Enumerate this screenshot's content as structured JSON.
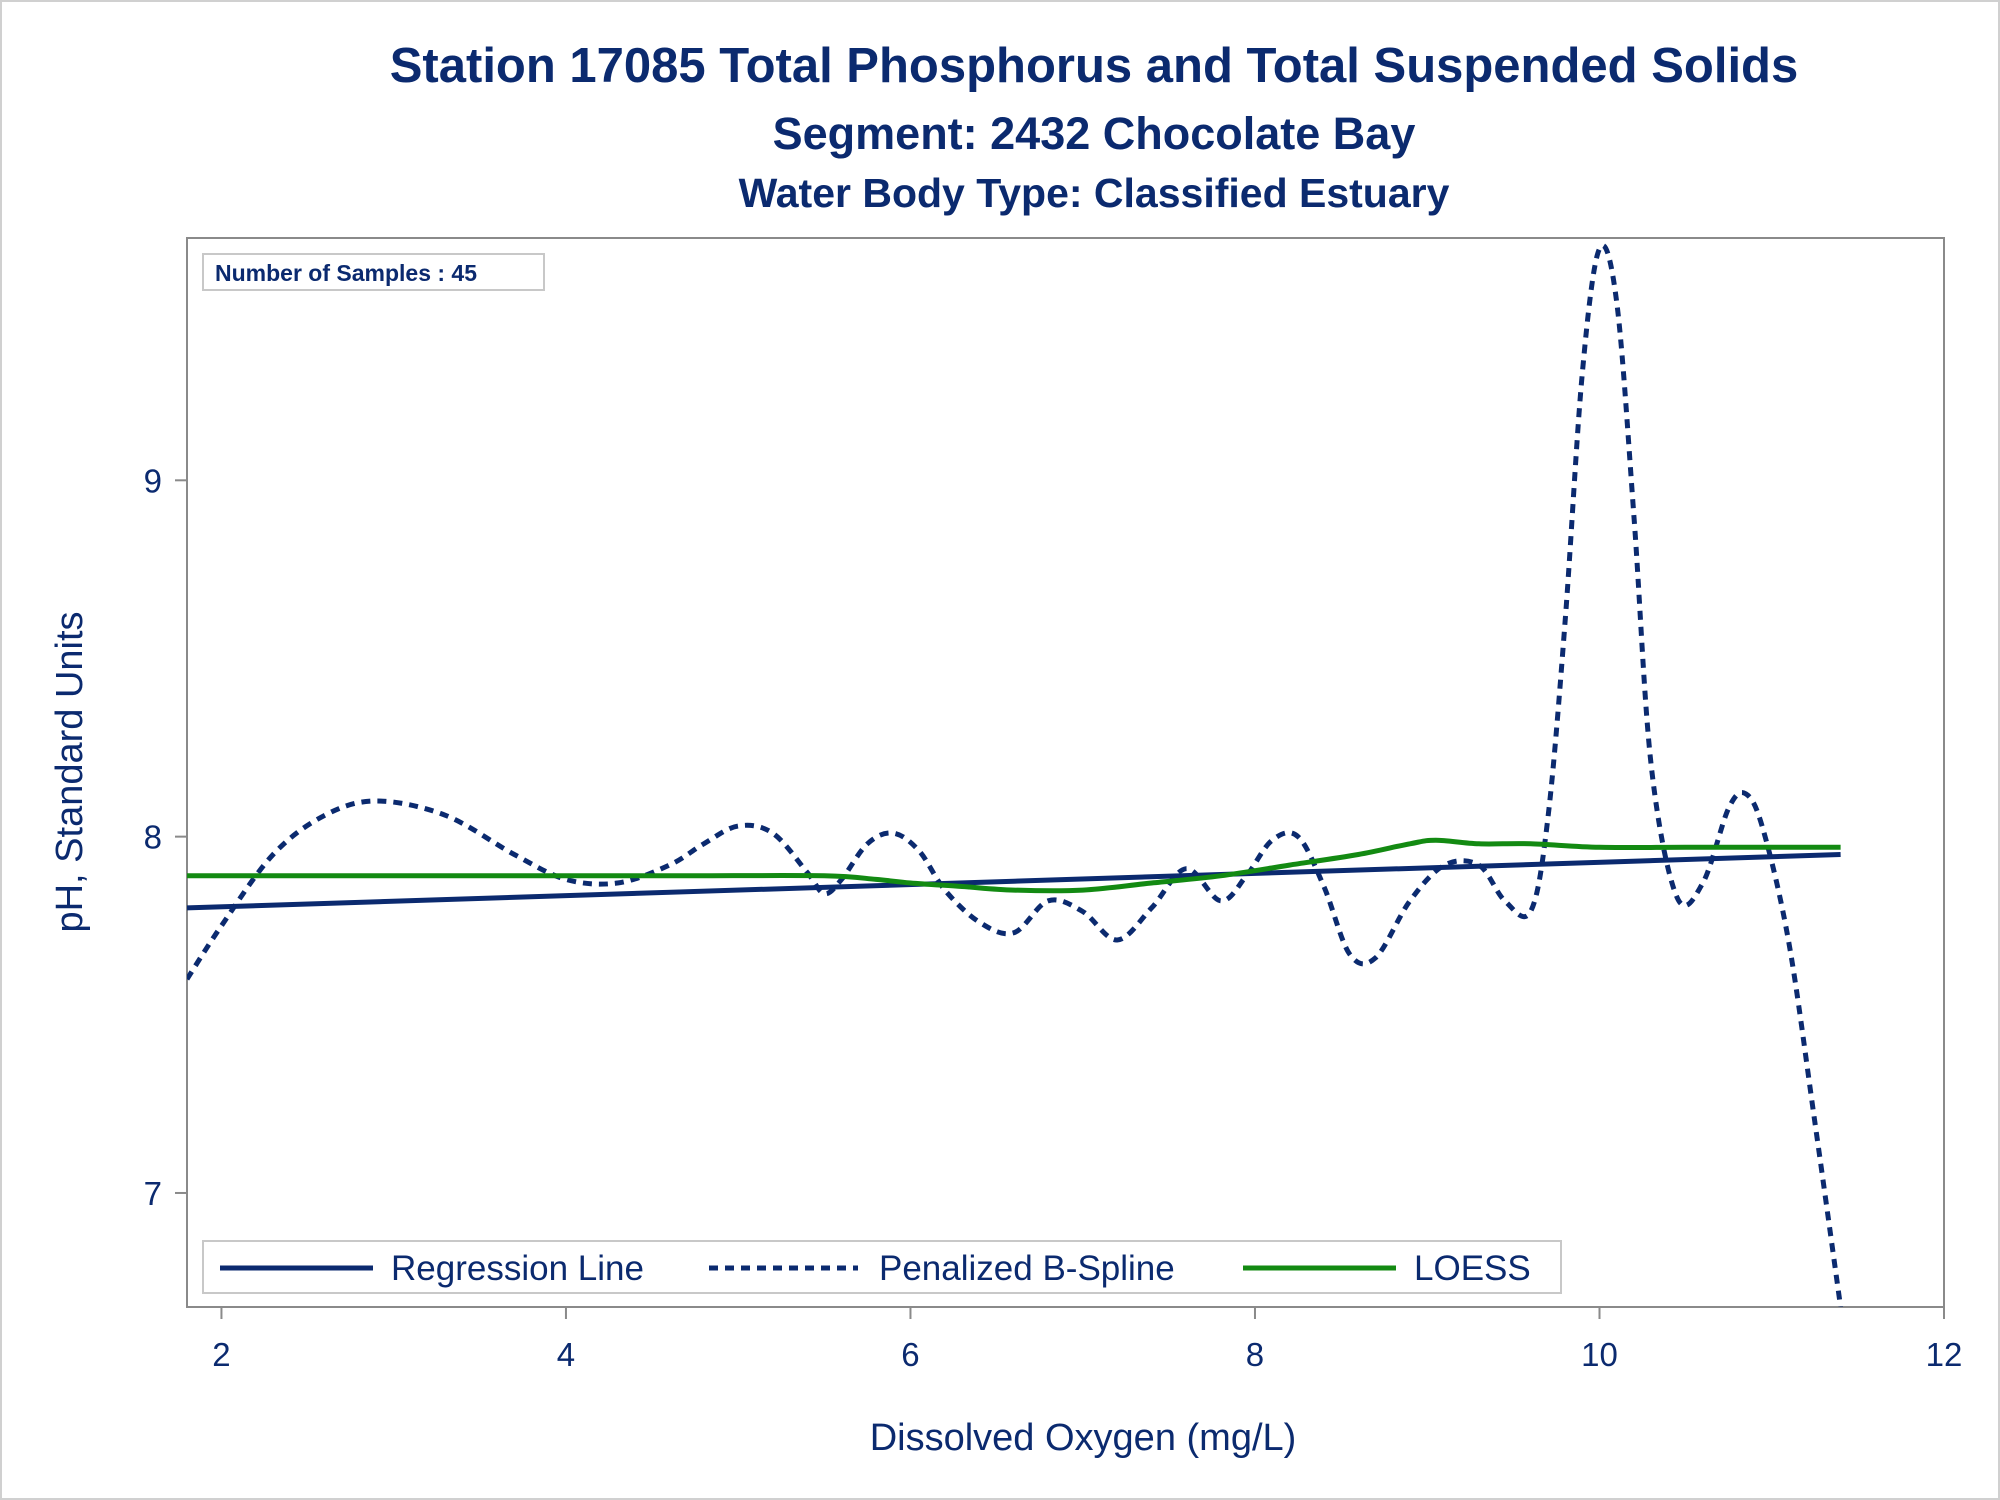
{
  "titles": {
    "line1": "Station 17085  Total Phosphorus and Total Suspended Solids",
    "line2": "Segment: 2432  Chocolate Bay",
    "line3": "Water Body Type: Classified Estuary"
  },
  "chart_data": {
    "type": "line",
    "xlabel": "Dissolved Oxygen (mg/L)",
    "ylabel": "pH, Standard Units",
    "xlim": [
      1.8,
      12.0
    ],
    "ylim": [
      6.68,
      9.68
    ],
    "x_ticks": [
      2,
      4,
      6,
      8,
      10,
      12
    ],
    "y_ticks": [
      7,
      8,
      9
    ],
    "grid": false,
    "annotation": "Number of Samples : 45",
    "legend_position": "bottom-left inside",
    "series": [
      {
        "name": "Regression Line",
        "style": "solid",
        "color": "#0b2a6f",
        "x": [
          1.8,
          11.4
        ],
        "y": [
          7.8,
          7.95
        ]
      },
      {
        "name": "Penalized B-Spline",
        "style": "dashed",
        "color": "#0b2a6f",
        "x": [
          1.8,
          2.0,
          2.3,
          2.6,
          2.9,
          3.3,
          3.7,
          4.0,
          4.3,
          4.6,
          4.8,
          5.0,
          5.2,
          5.4,
          5.5,
          5.6,
          5.75,
          5.9,
          6.05,
          6.2,
          6.4,
          6.6,
          6.8,
          7.0,
          7.2,
          7.4,
          7.6,
          7.8,
          7.95,
          8.1,
          8.25,
          8.4,
          8.55,
          8.7,
          8.9,
          9.1,
          9.3,
          9.45,
          9.6,
          9.7,
          9.8,
          9.9,
          10.0,
          10.1,
          10.2,
          10.3,
          10.45,
          10.6,
          10.75,
          10.85,
          10.95,
          11.1,
          11.25,
          11.4
        ],
        "y": [
          7.6,
          7.75,
          7.95,
          8.06,
          8.1,
          8.06,
          7.95,
          7.88,
          7.87,
          7.92,
          7.98,
          8.03,
          8.01,
          7.9,
          7.84,
          7.88,
          7.98,
          8.01,
          7.96,
          7.85,
          7.76,
          7.73,
          7.82,
          7.79,
          7.71,
          7.8,
          7.91,
          7.82,
          7.89,
          7.99,
          8.0,
          7.86,
          7.67,
          7.66,
          7.82,
          7.92,
          7.92,
          7.82,
          7.79,
          8.05,
          8.6,
          9.3,
          9.65,
          9.5,
          8.9,
          8.2,
          7.83,
          7.87,
          8.08,
          8.12,
          8.02,
          7.7,
          7.2,
          6.68
        ]
      },
      {
        "name": "LOESS",
        "style": "solid",
        "color": "#138a12",
        "x": [
          1.8,
          3.0,
          4.0,
          4.7,
          5.5,
          5.8,
          6.0,
          6.3,
          6.6,
          7.0,
          7.4,
          7.8,
          8.2,
          8.6,
          8.9,
          9.05,
          9.3,
          9.6,
          10.0,
          10.5,
          11.0,
          11.4
        ],
        "y": [
          7.89,
          7.89,
          7.89,
          7.89,
          7.89,
          7.88,
          7.87,
          7.86,
          7.85,
          7.85,
          7.87,
          7.89,
          7.92,
          7.95,
          7.98,
          7.99,
          7.98,
          7.98,
          7.97,
          7.97,
          7.97,
          7.97
        ]
      }
    ]
  }
}
